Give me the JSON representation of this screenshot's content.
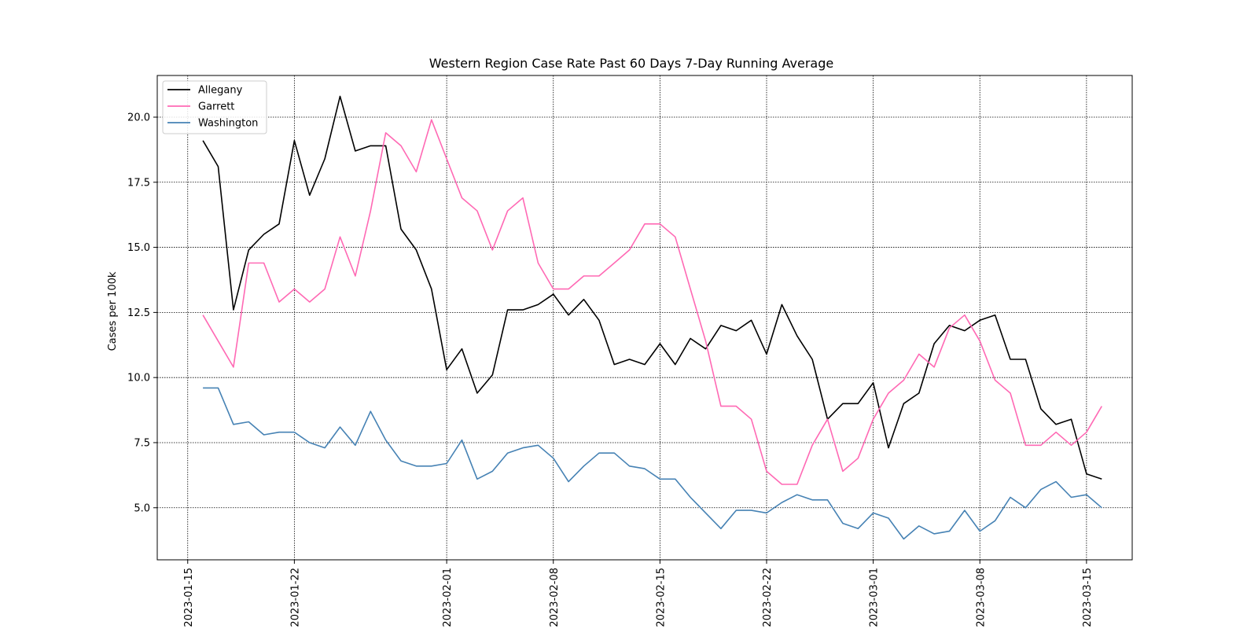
{
  "chart_data": {
    "type": "line",
    "title": "Western Region Case Rate  Past 60 Days 7-Day Running Average",
    "xlabel": "",
    "ylabel": "Cases per 100k",
    "x_start": "2023-01-16",
    "x": [
      "2023-01-16",
      "2023-01-17",
      "2023-01-18",
      "2023-01-19",
      "2023-01-20",
      "2023-01-21",
      "2023-01-22",
      "2023-01-23",
      "2023-01-24",
      "2023-01-25",
      "2023-01-26",
      "2023-01-27",
      "2023-01-28",
      "2023-01-29",
      "2023-01-30",
      "2023-01-31",
      "2023-02-01",
      "2023-02-02",
      "2023-02-03",
      "2023-02-04",
      "2023-02-05",
      "2023-02-06",
      "2023-02-07",
      "2023-02-08",
      "2023-02-09",
      "2023-02-10",
      "2023-02-11",
      "2023-02-12",
      "2023-02-13",
      "2023-02-14",
      "2023-02-15",
      "2023-02-16",
      "2023-02-17",
      "2023-02-18",
      "2023-02-19",
      "2023-02-20",
      "2023-02-21",
      "2023-02-22",
      "2023-02-23",
      "2023-02-24",
      "2023-02-25",
      "2023-02-26",
      "2023-02-27",
      "2023-02-28",
      "2023-03-01",
      "2023-03-02",
      "2023-03-03",
      "2023-03-04",
      "2023-03-05",
      "2023-03-06",
      "2023-03-07",
      "2023-03-08",
      "2023-03-09",
      "2023-03-10",
      "2023-03-11",
      "2023-03-12",
      "2023-03-13",
      "2023-03-14",
      "2023-03-15",
      "2023-03-16"
    ],
    "xlim": [
      "2023-01-13",
      "2023-03-18"
    ],
    "ylim": [
      3.0,
      21.6
    ],
    "xticks": [
      "2023-01-15",
      "2023-01-22",
      "2023-02-01",
      "2023-02-08",
      "2023-02-15",
      "2023-02-22",
      "2023-03-01",
      "2023-03-08",
      "2023-03-15"
    ],
    "yticks": [
      "5.0",
      "7.5",
      "10.0",
      "12.5",
      "15.0",
      "17.5",
      "20.0"
    ],
    "grid": true,
    "legend_position": "upper-left",
    "series": [
      {
        "name": "Allegany",
        "color": "#000000",
        "values": [
          19.1,
          18.1,
          12.6,
          14.9,
          15.5,
          15.9,
          19.1,
          17.0,
          18.4,
          20.8,
          18.7,
          18.9,
          18.9,
          15.7,
          14.9,
          13.4,
          10.3,
          11.1,
          9.4,
          10.1,
          12.6,
          12.6,
          12.8,
          13.2,
          12.4,
          13.0,
          12.2,
          10.5,
          10.7,
          10.5,
          11.3,
          10.5,
          11.5,
          11.1,
          12.0,
          11.8,
          12.2,
          10.9,
          12.8,
          11.6,
          10.7,
          8.4,
          9.0,
          9.0,
          9.8,
          7.3,
          9.0,
          9.4,
          11.3,
          12.0,
          11.8,
          12.2,
          12.4,
          10.7,
          10.7,
          8.8,
          8.2,
          8.4,
          6.3,
          6.1
        ]
      },
      {
        "name": "Garrett",
        "color": "#ff69b4",
        "values": [
          12.4,
          11.4,
          10.4,
          14.4,
          14.4,
          12.9,
          13.4,
          12.9,
          13.4,
          15.4,
          13.9,
          16.4,
          19.4,
          18.9,
          17.9,
          19.9,
          18.4,
          16.9,
          16.4,
          14.9,
          16.4,
          16.9,
          14.4,
          13.4,
          13.4,
          13.9,
          13.9,
          14.4,
          14.9,
          15.9,
          15.9,
          15.4,
          13.4,
          11.4,
          8.9,
          8.9,
          8.4,
          6.4,
          5.9,
          5.9,
          7.4,
          8.4,
          6.4,
          6.9,
          8.4,
          9.4,
          9.9,
          10.9,
          10.4,
          11.9,
          12.4,
          11.4,
          9.9,
          9.4,
          7.4,
          7.4,
          7.9,
          7.4,
          7.9,
          8.9
        ]
      },
      {
        "name": "Washington",
        "color": "#4682b4",
        "values": [
          9.6,
          9.6,
          8.2,
          8.3,
          7.8,
          7.9,
          7.9,
          7.5,
          7.3,
          8.1,
          7.4,
          8.7,
          7.6,
          6.8,
          6.6,
          6.6,
          6.7,
          7.6,
          6.1,
          6.4,
          7.1,
          7.3,
          7.4,
          6.9,
          6.0,
          6.6,
          7.1,
          7.1,
          6.6,
          6.5,
          6.1,
          6.1,
          5.4,
          4.8,
          4.2,
          4.9,
          4.9,
          4.8,
          5.2,
          5.5,
          5.3,
          5.3,
          4.4,
          4.2,
          4.8,
          4.6,
          3.8,
          4.3,
          4.0,
          4.1,
          4.9,
          4.1,
          4.5,
          5.4,
          5.0,
          5.7,
          6.0,
          5.4,
          5.5,
          5.0
        ]
      }
    ]
  }
}
